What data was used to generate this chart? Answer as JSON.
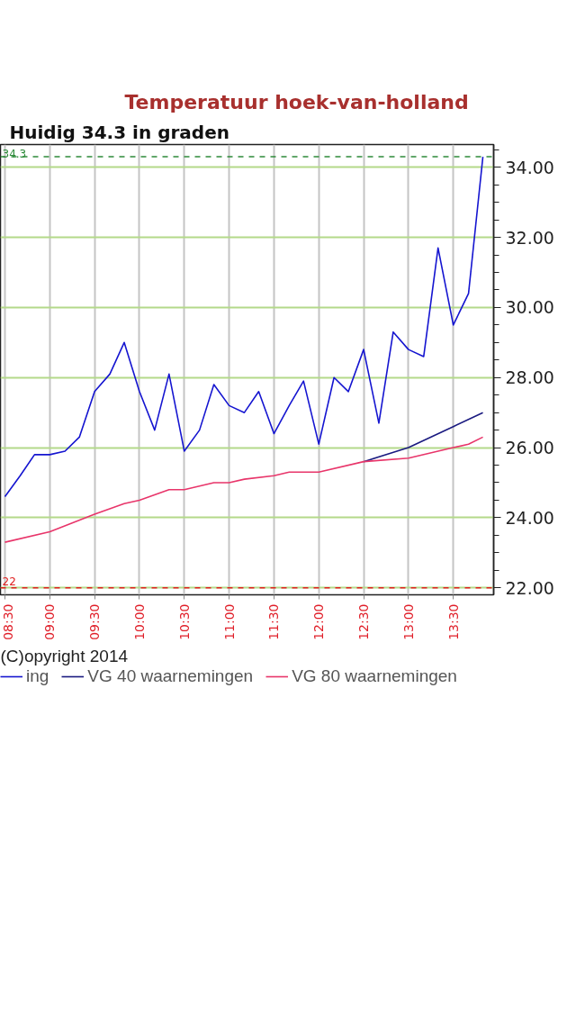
{
  "chart_data": {
    "type": "line",
    "title": "Temperatuur hoek-van-holland",
    "subtitle": "Huidig 34.3 in graden",
    "series": [
      {
        "name": "ing",
        "color": "#1515d0",
        "x": [
          8.5,
          8.67,
          8.83,
          9.0,
          9.17,
          9.33,
          9.5,
          9.67,
          9.83,
          10.0,
          10.17,
          10.33,
          10.5,
          10.67,
          10.83,
          11.0,
          11.17,
          11.33,
          11.5,
          11.67,
          11.83,
          12.0,
          12.17,
          12.33,
          12.5,
          12.67,
          12.83,
          13.0,
          13.17,
          13.33,
          13.5,
          13.67,
          13.83
        ],
        "values": [
          24.6,
          25.2,
          25.8,
          25.8,
          25.9,
          26.3,
          27.6,
          28.1,
          29.0,
          27.6,
          26.5,
          28.1,
          25.9,
          26.5,
          27.8,
          27.2,
          27.0,
          27.6,
          26.4,
          27.2,
          27.9,
          26.1,
          28.0,
          27.6,
          28.8,
          26.7,
          29.3,
          28.8,
          28.6,
          31.7,
          29.5,
          30.4,
          34.3
        ]
      },
      {
        "name": "VG 40 waarnemingen",
        "color": "#1a1a80",
        "x": [
          12.5,
          13.0,
          13.5,
          13.83
        ],
        "values": [
          25.6,
          26.0,
          26.6,
          27.0
        ]
      },
      {
        "name": "VG 80 waarnemingen",
        "color": "#e8356a",
        "x": [
          8.5,
          9.0,
          9.5,
          9.83,
          10.0,
          10.33,
          10.5,
          10.83,
          11.0,
          11.17,
          11.5,
          11.67,
          12.0,
          12.5,
          13.0,
          13.5,
          13.67,
          13.83
        ],
        "values": [
          23.3,
          23.6,
          24.1,
          24.4,
          24.5,
          24.8,
          24.8,
          25.0,
          25.0,
          25.1,
          25.2,
          25.3,
          25.3,
          25.6,
          25.7,
          26.0,
          26.1,
          26.3
        ]
      }
    ],
    "xlim": [
      8.45,
      13.95
    ],
    "xticks": [
      {
        "value": 8.5,
        "label": "08:30"
      },
      {
        "value": 9.0,
        "label": "09:00"
      },
      {
        "value": 9.5,
        "label": "09:30"
      },
      {
        "value": 10.0,
        "label": "10:00"
      },
      {
        "value": 10.5,
        "label": "10:30"
      },
      {
        "value": 11.0,
        "label": "11:00"
      },
      {
        "value": 11.5,
        "label": "11:30"
      },
      {
        "value": 12.0,
        "label": "12:00"
      },
      {
        "value": 12.5,
        "label": "12:30"
      },
      {
        "value": 13.0,
        "label": "13:00"
      },
      {
        "value": 13.5,
        "label": "13:30"
      }
    ],
    "ylim": [
      21.8,
      34.65
    ],
    "yticks": [
      {
        "value": 22,
        "label": "22.00"
      },
      {
        "value": 24,
        "label": "24.00"
      },
      {
        "value": 26,
        "label": "26.00"
      },
      {
        "value": 28,
        "label": "28.00"
      },
      {
        "value": 30,
        "label": "30.00"
      },
      {
        "value": 32,
        "label": "32.00"
      },
      {
        "value": 34,
        "label": "34.00"
      }
    ],
    "ref_lines": [
      {
        "axis": "y",
        "value": 34.3,
        "label": "34.3",
        "color": "#2e8b3a",
        "line_style": "dashed"
      },
      {
        "axis": "y",
        "value": 22,
        "label": "22",
        "color": "#e02020",
        "line_style": "dashed"
      }
    ],
    "annotations": [
      "(C)opyright 2014"
    ],
    "grid": true,
    "legend": "bottom",
    "marker": "none",
    "line_style": "solid"
  }
}
